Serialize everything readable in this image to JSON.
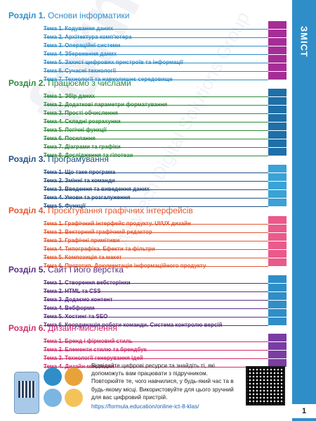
{
  "sidebar": {
    "title": "ЗМІСТ",
    "page_number": "1"
  },
  "watermark": {
    "text": "formula",
    "subtext": "A Lytech Digital Solutions Group"
  },
  "sections": [
    {
      "prefix": "Розділ 1.",
      "name": "Основи інформатики",
      "color": "#2d8fcb",
      "tab_color": "#a52e96",
      "topics": [
        "Тема 1. Кодування даних",
        "Тема 2. Архітектура комп'ютера",
        "Тема 3. Операційні системи",
        "Тема 4. Збереження даних",
        "Тема 5. Захист цифрових пристроїв та інформації",
        "Тема 6. Сучасні технології",
        "Тема 7. Технології та навколишнє середовище"
      ]
    },
    {
      "prefix": "Розділ 2.",
      "name": "Працюємо з числами",
      "color": "#2e8b3a",
      "tab_color": "#1f6fa8",
      "topics": [
        "Тема 1. Збір даних",
        "Тема 2. Додаткові параметри форматування",
        "Тема 3. Прості обчислення",
        "Тема 4. Складні розрахунки",
        "Тема 5. Логічні функції",
        "Тема 6. Посилання",
        "Тема 7. Діаграми та графіки",
        "Тема 8. Дослідження та гіпотези"
      ]
    },
    {
      "prefix": "Розділ 3.",
      "name": "Програмування",
      "color": "#234f87",
      "tab_color": "#3aa2d6",
      "topics": [
        "Тема 1. Що таке програма",
        "Тема 2. Змінні та команди",
        "Тема 3. Введення та виведення даних",
        "Тема 4. Умови та розгалуження",
        "Тема 5. Функції"
      ]
    },
    {
      "prefix": "Розділ 4.",
      "name": "Проєктування графічних інтерфейсів",
      "color": "#e4572e",
      "tab_color": "#ea5a8a",
      "topics": [
        "Тема 1. Графічний інтерфейс продукту. UI/UX дизайн",
        "Тема 2. Векторний графічний редактор",
        "Тема 3. Графічні примітиви",
        "Тема 4. Типографіка. Ефекти та фільтри",
        "Тема 5. Композиція та макет",
        "Тема 6. Прототип. Документація інформаційного продукту"
      ]
    },
    {
      "prefix": "Розділ 5.",
      "name": "Сайт і його верстка",
      "color": "#5b2d82",
      "tab_color": "#2f8ec8",
      "topics": [
        "Тема 1. Створення вебсторінки",
        "Тема 2. HTML та CSS",
        "Тема 3. Додаємо контент",
        "Тема 4. Вебформи",
        "Тема 5. Хостинг та SEO",
        "Тема 6. Координація роботи команди. Система контролю версій"
      ]
    },
    {
      "prefix": "Розділ 6.",
      "name": "Дизайн-мислення",
      "color": "#d12c6b",
      "tab_color": "#7a3da3",
      "topics": [
        "Тема 1. Бренд і фірмовий стиль",
        "Тема 2. Елементи стилю та брендбук",
        "Тема 3. Технології генерування ідей",
        "Тема 4. Дизайн-мислення"
      ]
    }
  ],
  "bottom": {
    "text": "Відвідайте цифрові ресурси та знайдіть ті, які допоможуть вам працювати з підручником. Повторюйте те, чого навчилися, у будь-який час та в будь-якому місці. Використовуйте для цього зручний для вас цифровий пристрій.",
    "link": "https://formula.education/online-ict-8-klas/"
  }
}
